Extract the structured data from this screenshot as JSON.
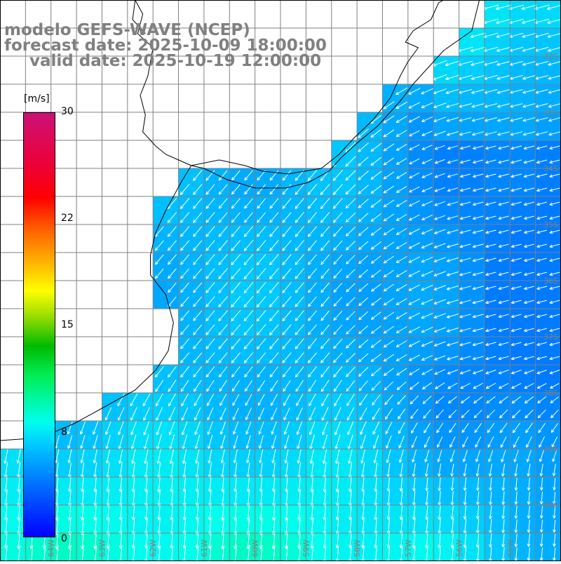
{
  "title": {
    "model": "modelo GEFS-WAVE (NCEP)",
    "forecast": "forecast date: 2025-10-09 18:00:00",
    "valid": "valid date: 2025-10-19 12:00:00"
  },
  "colorbar": {
    "unit": "[m/s]",
    "min": 0,
    "max": 30,
    "ticks": [
      "30",
      "22",
      "15",
      "8",
      "0"
    ],
    "tick_values": [
      30,
      22,
      15,
      8,
      0
    ],
    "stops": [
      "#0000ff",
      "#0077ff",
      "#00ccff",
      "#00ffee",
      "#00ee55",
      "#00bb00",
      "#99dd00",
      "#ffff00",
      "#ffbb00",
      "#ff6600",
      "#ff0000",
      "#ee0033",
      "#cc1177"
    ]
  },
  "map": {
    "lon_range": [
      -65,
      -54
    ],
    "lat_range": [
      -41,
      -31
    ],
    "grid_step_deg": 0.5,
    "land_color": "#ffffff",
    "coast_color": "#000000",
    "grid_color": "#808080",
    "arrow_color": "#ffffff",
    "lat_labels": [
      "32S",
      "33S",
      "34S",
      "35S",
      "36S",
      "37S",
      "38S",
      "39S",
      "40S"
    ],
    "lat_label_values": [
      -32,
      -33,
      -34,
      -35,
      -36,
      -37,
      -38,
      -39,
      -40
    ],
    "lon_labels": [
      "64W",
      "63W",
      "62W",
      "61W",
      "60W",
      "59W",
      "58W",
      "57W",
      "56W",
      "55W"
    ],
    "lon_label_values": [
      -64,
      -63,
      -62,
      -61,
      -60,
      -59,
      -58,
      -57,
      -56,
      -55
    ],
    "speed_range_ms": [
      4,
      9
    ],
    "direction_regime_east": "from east toward west-southwest",
    "direction_regime_south": "from north toward south",
    "direction_regime_plata": "from northeast toward southwest"
  }
}
